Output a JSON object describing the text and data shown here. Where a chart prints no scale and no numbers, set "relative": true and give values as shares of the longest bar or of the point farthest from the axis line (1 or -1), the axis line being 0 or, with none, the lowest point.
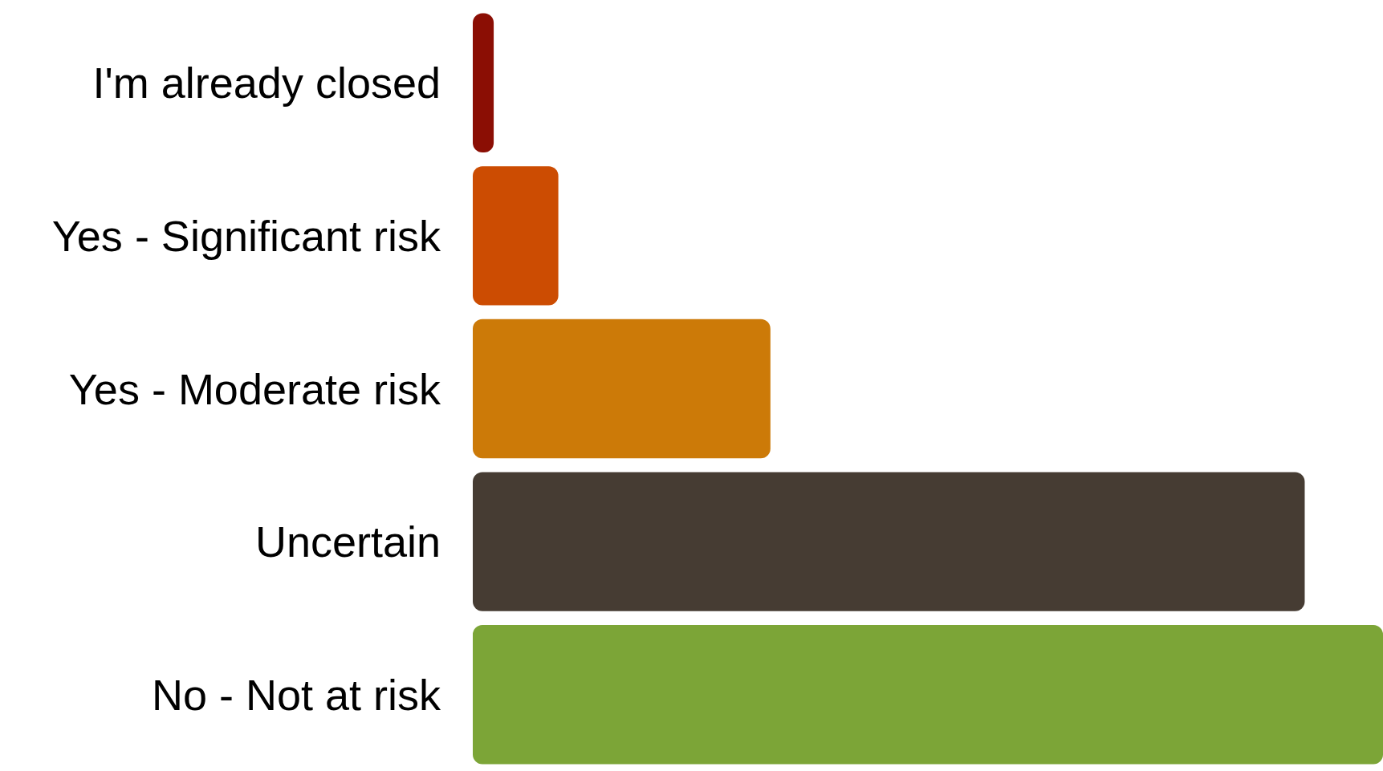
{
  "chart_data": {
    "type": "bar",
    "orientation": "horizontal",
    "relative": true,
    "categories": [
      "I'm already closed",
      "Yes - Significant risk",
      "Yes - Moderate risk",
      "Uncertain",
      "No - Not at risk"
    ],
    "values": [
      0.023,
      0.094,
      0.327,
      0.914,
      1
    ],
    "colors": [
      "#8b0e04",
      "#cc4c02",
      "#cc7a08",
      "#463c33",
      "#7ca537"
    ]
  }
}
